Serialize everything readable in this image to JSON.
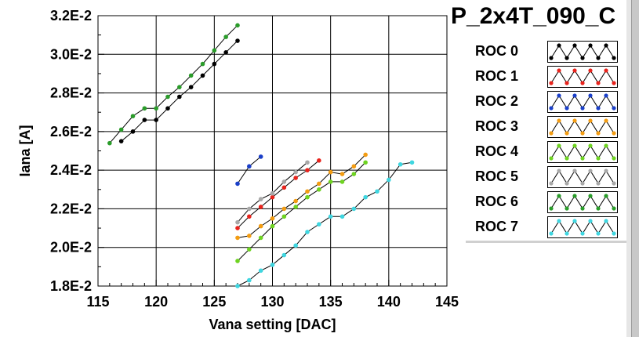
{
  "title": "P_2x4T_090_C",
  "chart_data": {
    "type": "line",
    "title": "P_2x4T_090_C",
    "xlabel": "Vana setting [DAC]",
    "ylabel": "Iana [A]",
    "xlim": [
      115,
      145
    ],
    "ylim": [
      0.018,
      0.032
    ],
    "x_ticks": [
      "115",
      "120",
      "125",
      "130",
      "135",
      "140",
      "145"
    ],
    "y_ticks": [
      "1.8E-2",
      "2.0E-2",
      "2.2E-2",
      "2.4E-2",
      "2.6E-2",
      "2.8E-2",
      "3.0E-2",
      "3.2E-2"
    ],
    "grid": true,
    "legend_position": "right",
    "series": [
      {
        "name": "ROC 0",
        "color": "#000000",
        "x": [
          117,
          118,
          119,
          120,
          121,
          122,
          123,
          124,
          125,
          126,
          127
        ],
        "y": [
          0.0255,
          0.026,
          0.0266,
          0.0266,
          0.0272,
          0.0278,
          0.0283,
          0.0289,
          0.0295,
          0.0301,
          0.0307
        ]
      },
      {
        "name": "ROC 1",
        "color": "#e8231c",
        "x": [
          127,
          128,
          129,
          130,
          131,
          132,
          133,
          134
        ],
        "y": [
          0.021,
          0.0216,
          0.0221,
          0.0226,
          0.0231,
          0.0236,
          0.024,
          0.0245
        ]
      },
      {
        "name": "ROC 2",
        "color": "#1a3fc8",
        "x": [
          127,
          128,
          129
        ],
        "y": [
          0.0233,
          0.0242,
          0.0247
        ]
      },
      {
        "name": "ROC 3",
        "color": "#f39c12",
        "x": [
          127,
          128,
          129,
          130,
          131,
          132,
          133,
          134,
          135,
          136,
          137,
          138
        ],
        "y": [
          0.0205,
          0.0206,
          0.0211,
          0.0215,
          0.022,
          0.0224,
          0.0229,
          0.0233,
          0.0239,
          0.0238,
          0.0242,
          0.0248
        ]
      },
      {
        "name": "ROC 4",
        "color": "#6ed321",
        "x": [
          127,
          128,
          129,
          130,
          131,
          132,
          133,
          134,
          135,
          136,
          137,
          138
        ],
        "y": [
          0.0193,
          0.0199,
          0.0205,
          0.0211,
          0.0216,
          0.0221,
          0.0226,
          0.023,
          0.0234,
          0.0234,
          0.0238,
          0.0244
        ]
      },
      {
        "name": "ROC 5",
        "color": "#a8a8a8",
        "x": [
          127,
          128,
          129,
          130,
          131,
          132,
          133
        ],
        "y": [
          0.0213,
          0.022,
          0.0225,
          0.0228,
          0.0234,
          0.0239,
          0.0244
        ]
      },
      {
        "name": "ROC 6",
        "color": "#2a9c2a",
        "x": [
          116,
          117,
          118,
          119,
          120,
          121,
          122,
          123,
          124,
          125,
          126,
          127
        ],
        "y": [
          0.0254,
          0.0261,
          0.0268,
          0.0272,
          0.0272,
          0.0278,
          0.0283,
          0.0289,
          0.0295,
          0.0302,
          0.0309,
          0.0315
        ]
      },
      {
        "name": "ROC 7",
        "color": "#3fd6e0",
        "x": [
          127,
          128,
          129,
          130,
          131,
          132,
          133,
          134,
          135,
          136,
          137,
          138,
          139,
          140,
          141,
          142
        ],
        "y": [
          0.018,
          0.0183,
          0.0188,
          0.0191,
          0.0196,
          0.0201,
          0.0208,
          0.0212,
          0.0216,
          0.0216,
          0.022,
          0.0226,
          0.0229,
          0.0235,
          0.0243,
          0.0244
        ]
      }
    ]
  }
}
